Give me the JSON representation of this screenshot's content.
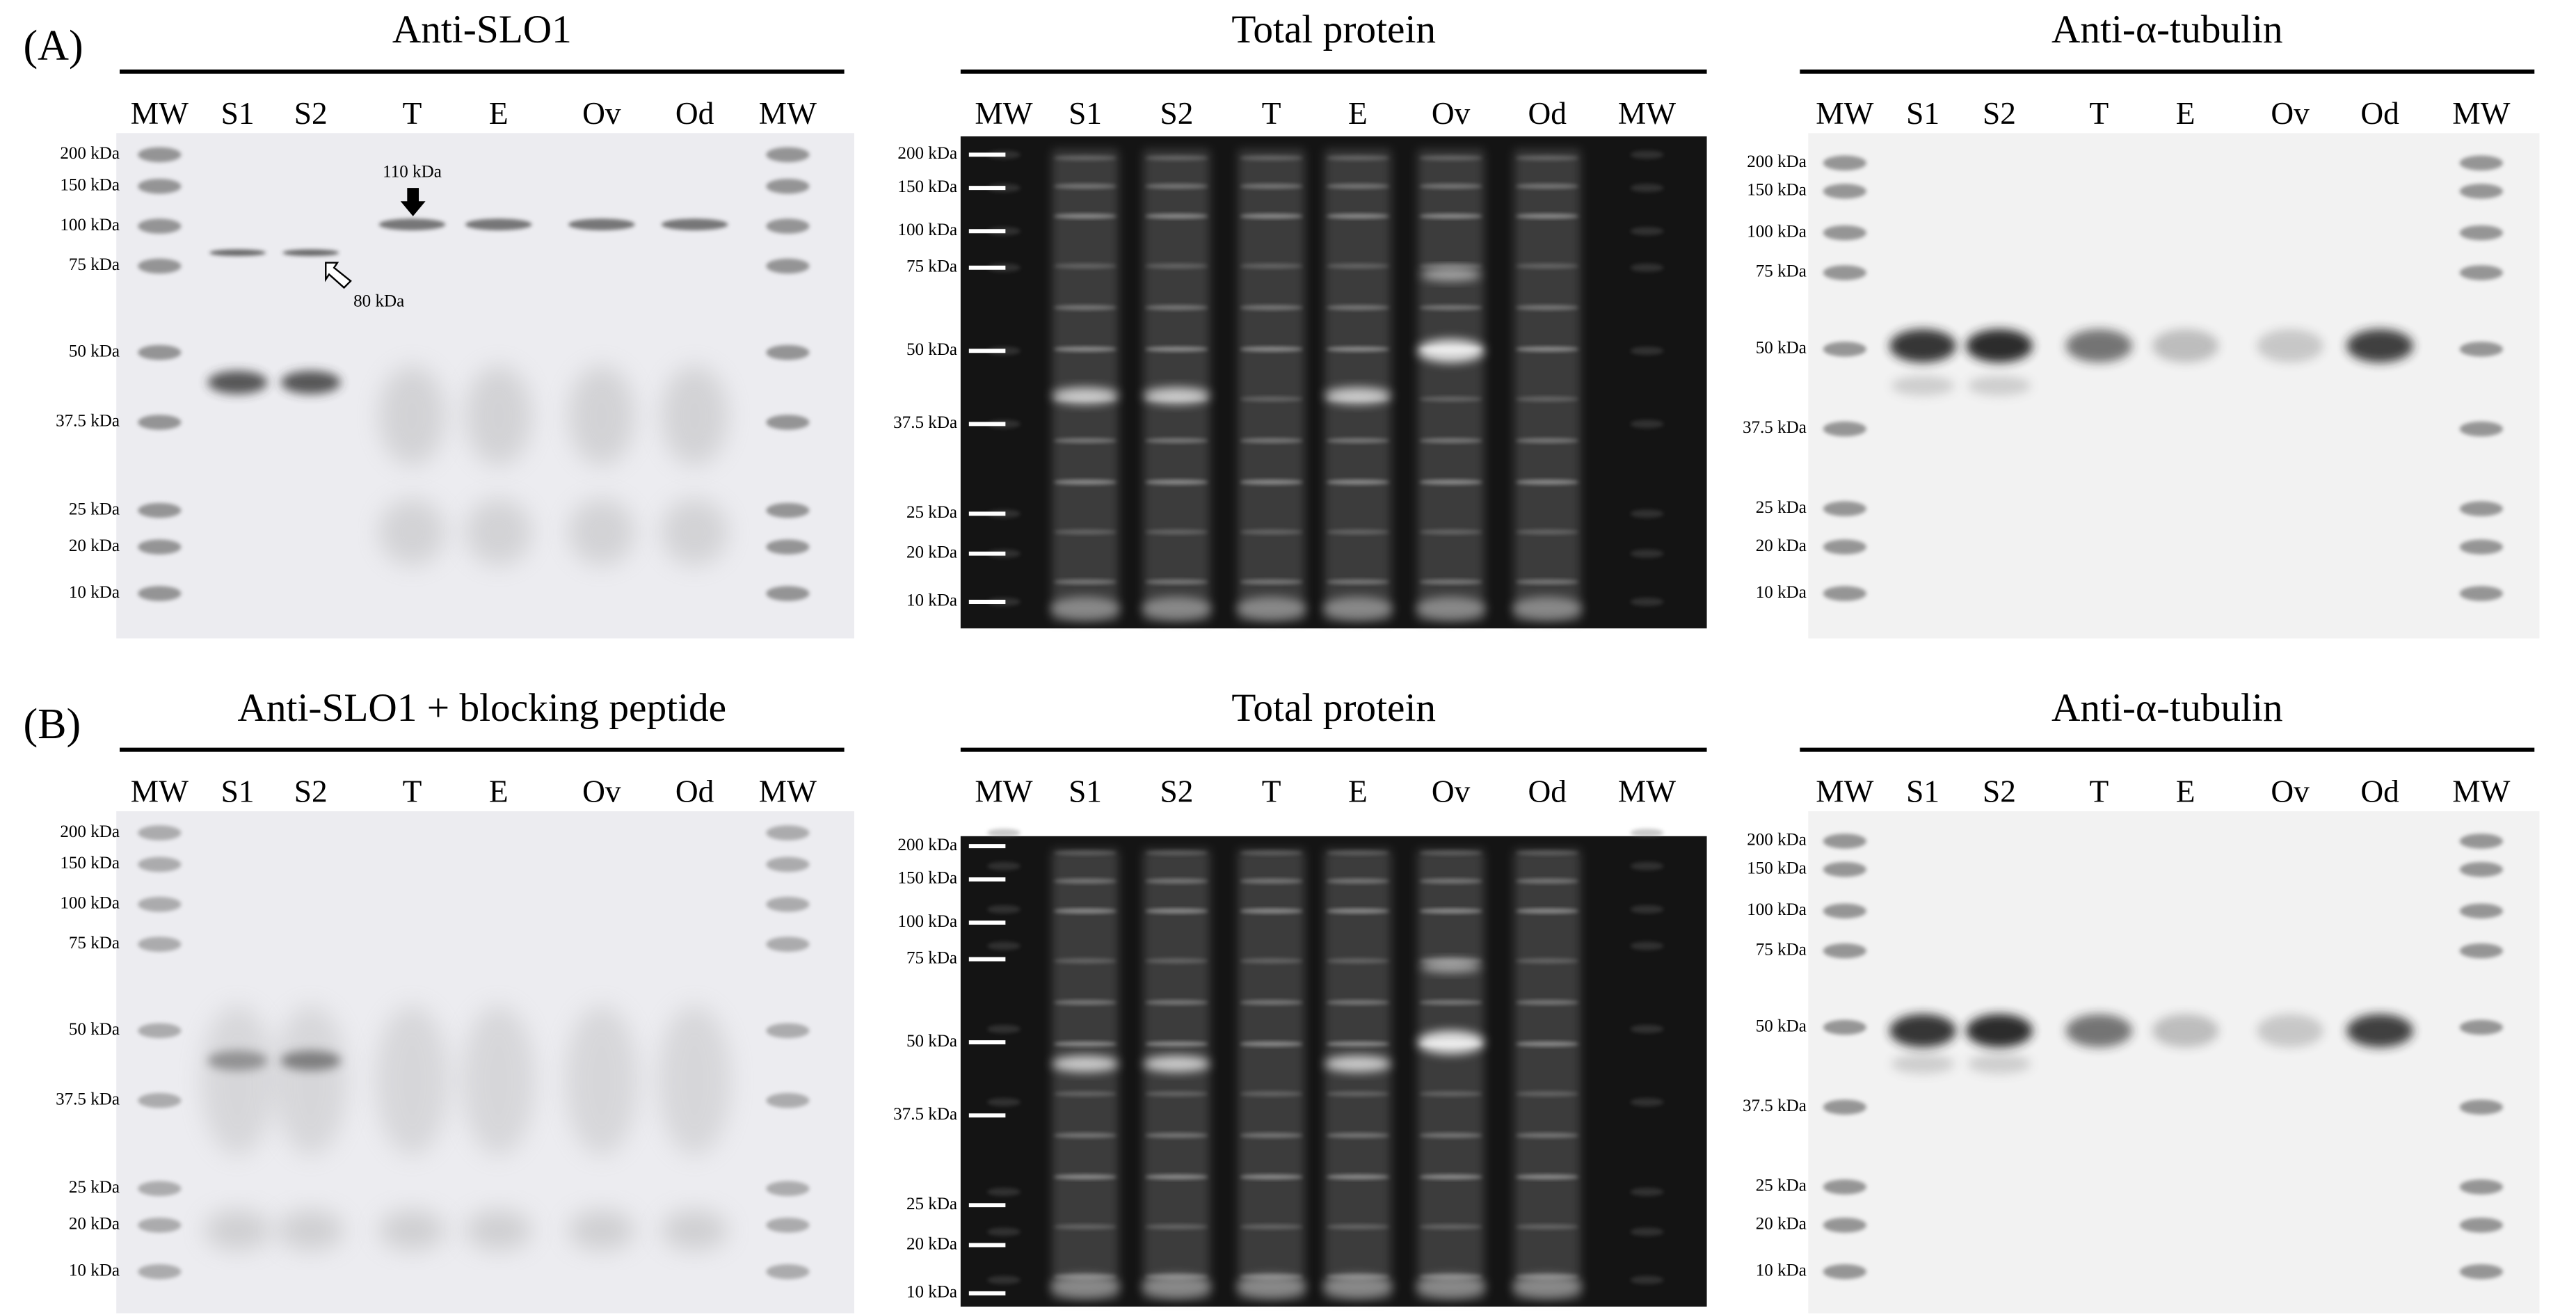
{
  "rows": [
    {
      "label": "(A)",
      "blots": [
        {
          "title": "Anti-SLO1",
          "lanes": [
            "MW",
            "S1",
            "S2",
            "T",
            "E",
            "Ov",
            "Od",
            "MW"
          ],
          "markers": [
            "200 kDa",
            "150 kDa",
            "100 kDa",
            "75 kDa",
            "50 kDa",
            "37.5 kDa",
            "25 kDa",
            "20 kDa",
            "10 kDa"
          ],
          "annotations": [
            "110 kDa",
            "80 kDa"
          ]
        },
        {
          "title": "Total protein",
          "lanes": [
            "MW",
            "S1",
            "S2",
            "T",
            "E",
            "Ov",
            "Od",
            "MW"
          ],
          "markers": [
            "200 kDa",
            "150 kDa",
            "100 kDa",
            "75 kDa",
            "50 kDa",
            "37.5 kDa",
            "25 kDa",
            "20 kDa",
            "10 kDa"
          ]
        },
        {
          "title": "Anti-α-tubulin",
          "lanes": [
            "MW",
            "S1",
            "S2",
            "T",
            "E",
            "Ov",
            "Od",
            "MW"
          ],
          "markers": [
            "200 kDa",
            "150 kDa",
            "100 kDa",
            "75 kDa",
            "50 kDa",
            "37.5 kDa",
            "25 kDa",
            "20 kDa",
            "10 kDa"
          ]
        }
      ]
    },
    {
      "label": "(B)",
      "blots": [
        {
          "title": "Anti-SLO1 + blocking peptide",
          "lanes": [
            "MW",
            "S1",
            "S2",
            "T",
            "E",
            "Ov",
            "Od",
            "MW"
          ],
          "markers": [
            "200 kDa",
            "150 kDa",
            "100 kDa",
            "75 kDa",
            "50 kDa",
            "37.5 kDa",
            "25 kDa",
            "20 kDa",
            "10 kDa"
          ]
        },
        {
          "title": "Total protein",
          "lanes": [
            "MW",
            "S1",
            "S2",
            "T",
            "E",
            "Ov",
            "Od",
            "MW"
          ],
          "markers": [
            "200 kDa",
            "150 kDa",
            "100 kDa",
            "75 kDa",
            "50 kDa",
            "37.5 kDa",
            "25 kDa",
            "20 kDa",
            "10 kDa"
          ]
        },
        {
          "title": "Anti-α-tubulin",
          "lanes": [
            "MW",
            "S1",
            "S2",
            "T",
            "E",
            "Ov",
            "Od",
            "MW"
          ],
          "markers": [
            "200 kDa",
            "150 kDa",
            "100 kDa",
            "75 kDa",
            "50 kDa",
            "37.5 kDa",
            "25 kDa",
            "20 kDa",
            "10 kDa"
          ]
        }
      ]
    }
  ]
}
